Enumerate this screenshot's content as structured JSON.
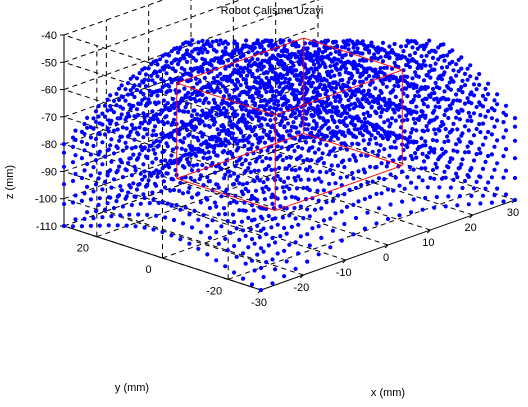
{
  "chart_data": {
    "type": "scatter",
    "projection": "3d",
    "title": "Robot Çalisma Uzayi",
    "xlabel": "x (mm)",
    "ylabel": "y (mm)",
    "zlabel": "z (mm)",
    "xlim": [
      -30,
      30
    ],
    "ylim": [
      -30,
      30
    ],
    "zlim": [
      -110,
      -40
    ],
    "x_ticks": [
      "-30",
      "-20",
      "-10",
      "0",
      "10",
      "20",
      "30"
    ],
    "y_ticks": [
      "-20",
      "0",
      "20"
    ],
    "z_ticks": [
      "-40",
      "-50",
      "-60",
      "-70",
      "-80",
      "-90",
      "-100",
      "-110"
    ],
    "grid": true,
    "point_color": "#0000ff",
    "box_color": "#ff0000",
    "workspace_box": {
      "x": [
        -15,
        15
      ],
      "y": [
        -15,
        15
      ],
      "z": [
        -95,
        -60
      ]
    },
    "workspace_samples": {
      "x_range": [
        -30,
        30
      ],
      "y_range": [
        -30,
        30
      ],
      "z_top_range": [
        -80,
        -40
      ],
      "z_bottom": -110
    }
  }
}
